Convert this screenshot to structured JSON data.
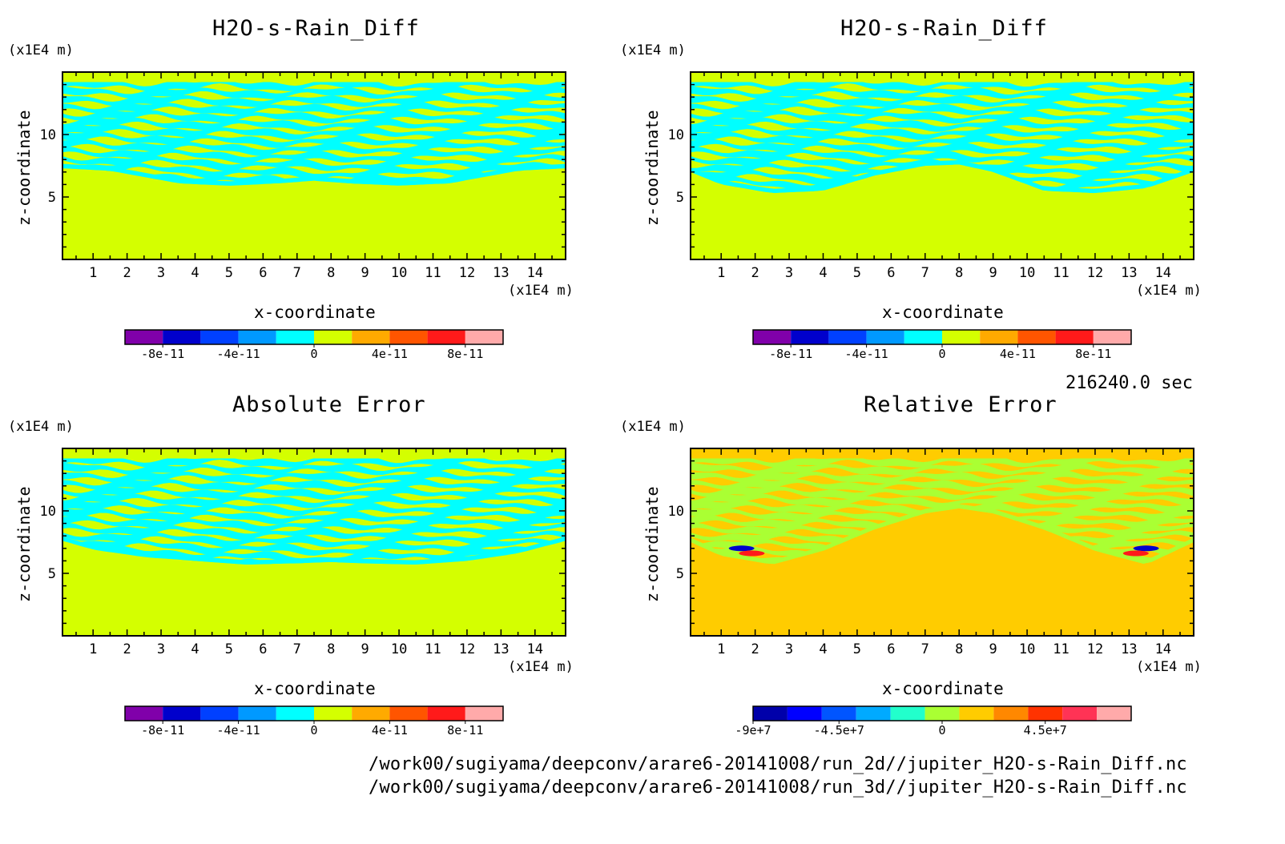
{
  "colors": {
    "background": "#ffffff",
    "axis": "#000000"
  },
  "time_label": "216240.0 sec",
  "file_paths": [
    "/work00/sugiyama/deepconv/arare6-20141008/run_2d//jupiter_H2O-s-Rain_Diff.nc",
    "/work00/sugiyama/deepconv/arare6-20141008/run_3d//jupiter_H2O-s-Rain_Diff.nc"
  ],
  "chart_data": [
    {
      "type": "heatmap",
      "title": "H2O-s-Rain_Diff",
      "xlabel": "x-coordinate",
      "ylabel": "z-coordinate",
      "x_unit": "(x1E4 m)",
      "y_unit": "(x1E4 m)",
      "xlim": [
        0.1,
        14.9
      ],
      "ylim": [
        0,
        15
      ],
      "x_ticks": [
        1,
        2,
        3,
        4,
        5,
        6,
        7,
        8,
        9,
        10,
        11,
        12,
        13,
        14
      ],
      "y_ticks": [
        5,
        10
      ],
      "background_color": "#d4ff00",
      "pattern_color": "#00ffff",
      "layer_top": 14.2,
      "layer_bottom_profile": [
        [
          0.1,
          7.3
        ],
        [
          1.5,
          7.1
        ],
        [
          2.5,
          6.6
        ],
        [
          3.5,
          6.1
        ],
        [
          5,
          5.9
        ],
        [
          6.5,
          6.1
        ],
        [
          7.5,
          6.3
        ],
        [
          8.5,
          6.1
        ],
        [
          10,
          5.9
        ],
        [
          11.5,
          6.1
        ],
        [
          12.5,
          6.6
        ],
        [
          13.5,
          7.1
        ],
        [
          14.9,
          7.3
        ]
      ],
      "colorbar": {
        "colors": [
          "#8000aa",
          "#0000cc",
          "#0040ff",
          "#0099ff",
          "#00ffff",
          "#d4ff00",
          "#ffaa00",
          "#ff5500",
          "#ff1a1a",
          "#ffaaaa"
        ],
        "labels": [
          "-8e-11",
          "-4e-11",
          "0",
          "4e-11",
          "8e-11"
        ],
        "label_positions": [
          1,
          3,
          5,
          7,
          9
        ]
      }
    },
    {
      "type": "heatmap",
      "title": "H2O-s-Rain_Diff",
      "xlabel": "x-coordinate",
      "ylabel": "z-coordinate",
      "x_unit": "(x1E4 m)",
      "y_unit": "(x1E4 m)",
      "xlim": [
        0.1,
        14.9
      ],
      "ylim": [
        0,
        15
      ],
      "x_ticks": [
        1,
        2,
        3,
        4,
        5,
        6,
        7,
        8,
        9,
        10,
        11,
        12,
        13,
        14
      ],
      "y_ticks": [
        5,
        10
      ],
      "background_color": "#d4ff00",
      "pattern_color": "#00ffff",
      "layer_top": 14.2,
      "layer_bottom_profile": [
        [
          0.1,
          7.0
        ],
        [
          1,
          6.0
        ],
        [
          2.5,
          5.3
        ],
        [
          4,
          5.5
        ],
        [
          5.5,
          6.7
        ],
        [
          7,
          7.5
        ],
        [
          8,
          7.6
        ],
        [
          9,
          7.0
        ],
        [
          10.5,
          5.5
        ],
        [
          12,
          5.3
        ],
        [
          13.5,
          5.7
        ],
        [
          14.9,
          7.0
        ]
      ],
      "colorbar": {
        "colors": [
          "#8000aa",
          "#0000cc",
          "#0040ff",
          "#0099ff",
          "#00ffff",
          "#d4ff00",
          "#ffaa00",
          "#ff5500",
          "#ff1a1a",
          "#ffaaaa"
        ],
        "labels": [
          "-8e-11",
          "-4e-11",
          "0",
          "4e-11",
          "8e-11"
        ],
        "label_positions": [
          1,
          3,
          5,
          7,
          9
        ]
      }
    },
    {
      "type": "heatmap",
      "title": "Absolute Error",
      "xlabel": "x-coordinate",
      "ylabel": "z-coordinate",
      "x_unit": "(x1E4 m)",
      "y_unit": "(x1E4 m)",
      "xlim": [
        0.1,
        14.9
      ],
      "ylim": [
        0,
        15
      ],
      "x_ticks": [
        1,
        2,
        3,
        4,
        5,
        6,
        7,
        8,
        9,
        10,
        11,
        12,
        13,
        14
      ],
      "y_ticks": [
        5,
        10
      ],
      "background_color": "#d4ff00",
      "pattern_color": "#00ffff",
      "layer_top": 14.2,
      "layer_bottom_profile": [
        [
          0.1,
          7.6
        ],
        [
          1,
          6.9
        ],
        [
          2.5,
          6.3
        ],
        [
          4,
          6.0
        ],
        [
          5.5,
          5.7
        ],
        [
          7,
          5.8
        ],
        [
          8,
          5.9
        ],
        [
          9,
          5.8
        ],
        [
          10.5,
          5.7
        ],
        [
          12,
          6.0
        ],
        [
          13.5,
          6.6
        ],
        [
          14.9,
          7.6
        ]
      ],
      "colorbar": {
        "colors": [
          "#8000aa",
          "#0000cc",
          "#0040ff",
          "#0099ff",
          "#00ffff",
          "#d4ff00",
          "#ffaa00",
          "#ff5500",
          "#ff1a1a",
          "#ffaaaa"
        ],
        "labels": [
          "-8e-11",
          "-4e-11",
          "0",
          "4e-11",
          "8e-11"
        ],
        "label_positions": [
          1,
          3,
          5,
          7,
          9
        ]
      }
    },
    {
      "type": "heatmap",
      "title": "Relative Error",
      "xlabel": "x-coordinate",
      "ylabel": "z-coordinate",
      "x_unit": "(x1E4 m)",
      "y_unit": "(x1E4 m)",
      "xlim": [
        0.1,
        14.9
      ],
      "ylim": [
        0,
        15
      ],
      "x_ticks": [
        1,
        2,
        3,
        4,
        5,
        6,
        7,
        8,
        9,
        10,
        11,
        12,
        13,
        14
      ],
      "y_ticks": [
        5,
        10
      ],
      "background_color": "#ffcc00",
      "pattern_color": "#aaff33",
      "layer_top": 14.2,
      "layer_bottom_profile": [
        [
          0.1,
          7.5
        ],
        [
          1,
          6.4
        ],
        [
          2.5,
          5.7
        ],
        [
          4,
          6.8
        ],
        [
          5.5,
          8.5
        ],
        [
          7,
          9.8
        ],
        [
          8,
          10.2
        ],
        [
          9,
          9.8
        ],
        [
          10.5,
          8.5
        ],
        [
          12,
          6.8
        ],
        [
          13.5,
          5.7
        ],
        [
          14.9,
          7.5
        ]
      ],
      "extremes": [
        {
          "x": 1.6,
          "z": 7.0,
          "color": "#0000cc"
        },
        {
          "x": 1.9,
          "z": 6.6,
          "color": "#ff1a1a"
        },
        {
          "x": 13.5,
          "z": 7.0,
          "color": "#0000cc"
        },
        {
          "x": 13.2,
          "z": 6.6,
          "color": "#ff1a1a"
        }
      ],
      "colorbar": {
        "colors": [
          "#0000aa",
          "#0000ff",
          "#0055ff",
          "#00aaff",
          "#22ffcc",
          "#aaff33",
          "#ffcc00",
          "#ff8800",
          "#ff3300",
          "#ff3355",
          "#ffaaaa"
        ],
        "labels": [
          "-9e+7",
          "-4.5e+7",
          "0",
          "4.5e+7"
        ],
        "label_positions": [
          0,
          2.5,
          5.5,
          8.5
        ]
      }
    }
  ]
}
